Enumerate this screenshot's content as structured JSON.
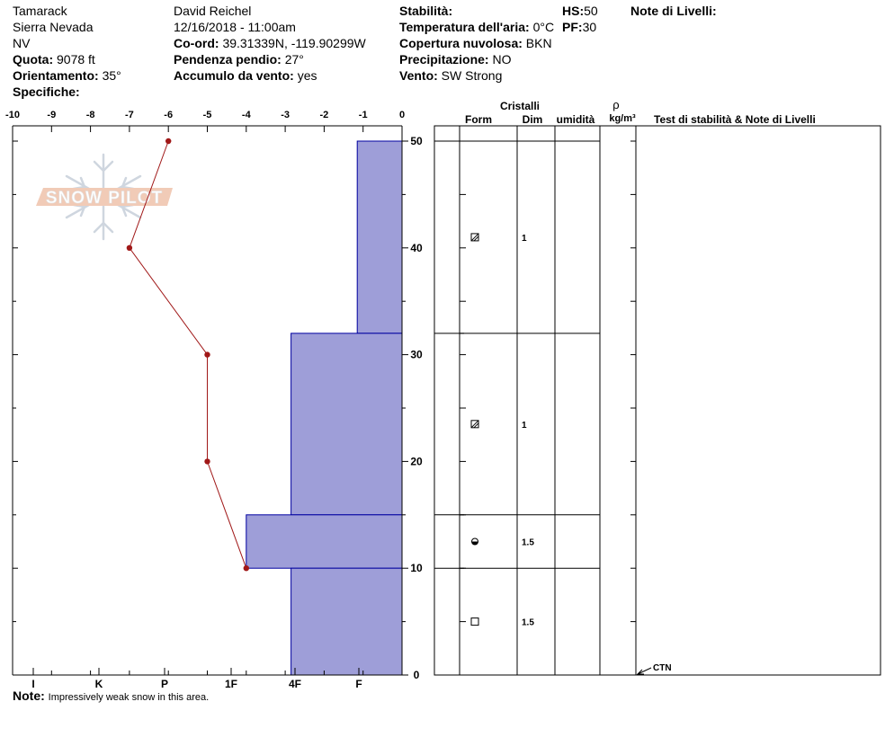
{
  "header": {
    "location": "Tamarack",
    "range": "Sierra Nevada",
    "state": "NV",
    "elevation_label": "Quota:",
    "elevation_value": "9078 ft",
    "aspect_label": "Orientamento:",
    "aspect_value": "35°",
    "specifics_label": "Specifiche:",
    "observer": "David Reichel",
    "datetime": "12/16/2018 - 11:00am",
    "coord_label": "Co-ord:",
    "coord_value": "39.31339N, -119.90299W",
    "slope_label": "Pendenza pendio:",
    "slope_value": "27°",
    "wind_load_label": "Accumulo da vento:",
    "wind_load_value": "yes",
    "stability_label": "Stabilità:",
    "air_temp_label": "Temperatura dell'aria:",
    "air_temp_value": "0°C",
    "cloud_label": "Copertura nuvolosa:",
    "cloud_value": "BKN",
    "precip_label": "Precipitazione:",
    "precip_value": "NO",
    "wind_label": "Vento:",
    "wind_value": "SW Strong",
    "hs_label": "HS:",
    "hs_value": "50",
    "pf_label": "PF:",
    "pf_value": "30",
    "layer_notes_label": "Note di Livelli:"
  },
  "logo_text": "SNOW PILOT",
  "note_label": "Note:",
  "note_text": "Impressively weak snow in this area.",
  "table_headers": {
    "crystals": "Cristalli",
    "form": "Form",
    "dim": "Dim",
    "humidity": "umidità",
    "rho": "ρ",
    "density_unit": "kg/m³",
    "tests": "Test di stabilità & Note di Livelli"
  },
  "chart_data": {
    "type": "line",
    "temperature_axis": {
      "range": [
        -10,
        0
      ],
      "ticks": [
        "-10",
        "-9",
        "-8",
        "-7",
        "-6",
        "-5",
        "-4",
        "-3",
        "-2",
        "-1",
        "0"
      ]
    },
    "height_axis": {
      "range": [
        0,
        50
      ],
      "ticks": [
        "0",
        "10",
        "20",
        "30",
        "40",
        "50"
      ]
    },
    "hardness_axis": {
      "ticks": [
        "I",
        "K",
        "P",
        "1F",
        "4F",
        "F"
      ]
    },
    "temperature_profile": [
      {
        "height": 50,
        "temp": -6
      },
      {
        "height": 40,
        "temp": -7
      },
      {
        "height": 30,
        "temp": -5
      },
      {
        "height": 20,
        "temp": -5
      },
      {
        "height": 10,
        "temp": -4
      }
    ],
    "hardness_layers": [
      {
        "top": 50,
        "bottom": 32,
        "temp_equiv": -1.15
      },
      {
        "top": 32,
        "bottom": 15,
        "temp_equiv": -2.85
      },
      {
        "top": 15,
        "bottom": 10,
        "temp_equiv": -4.0
      },
      {
        "top": 10,
        "bottom": 0,
        "temp_equiv": -2.85
      }
    ],
    "layers": [
      {
        "top": 50,
        "bottom": 32,
        "form_icon": "faceted-rounded-icon",
        "dim": "1"
      },
      {
        "top": 32,
        "bottom": 15,
        "form_icon": "faceted-rounded-icon",
        "dim": "1"
      },
      {
        "top": 15,
        "bottom": 10,
        "form_icon": "rounding-depth-hoar-icon",
        "dim": "1.5"
      },
      {
        "top": 10,
        "bottom": 0,
        "form_icon": "faceted-crystal-icon",
        "dim": "1.5"
      }
    ],
    "test_result": {
      "height": 0,
      "label": "CTN"
    },
    "colors": {
      "hardness_fill": "#9e9ed8",
      "hardness_stroke": "#0000a0",
      "temperature_line": "#a01818"
    }
  }
}
